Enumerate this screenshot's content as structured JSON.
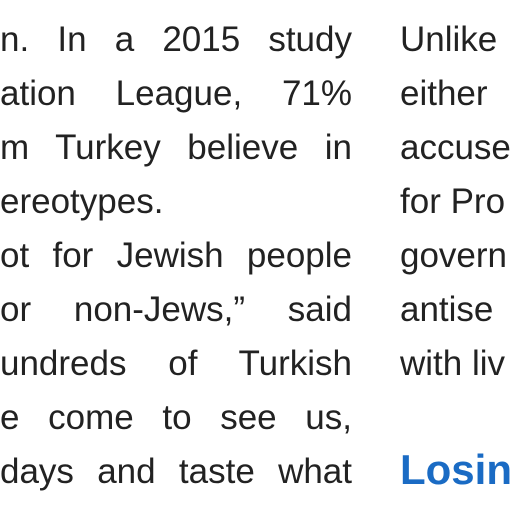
{
  "left_column": {
    "lines": [
      "n. In a 2015 study",
      "ation League, 71%",
      "m Turkey believe in",
      "ereotypes.",
      "ot for Jewish people",
      "or non-Jews,” said",
      "undreds of Turkish",
      "e come to see us,",
      "days and taste what"
    ]
  },
  "right_column": {
    "lines": [
      "Unlike",
      "either",
      "accuse",
      "for Pro",
      "govern",
      "antise",
      "with liv"
    ],
    "heading": "Losin"
  }
}
